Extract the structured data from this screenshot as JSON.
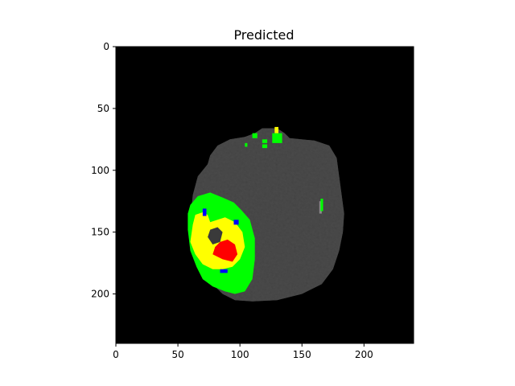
{
  "chart_data": {
    "type": "heatmap",
    "title": "Predicted",
    "xlabel": "",
    "ylabel": "",
    "xlim": [
      0,
      240
    ],
    "ylim": [
      240,
      0
    ],
    "xticks": [
      0,
      50,
      100,
      150,
      200
    ],
    "yticks": [
      0,
      50,
      100,
      150,
      200
    ],
    "grid": false,
    "legend": "none",
    "background_color": "#000000",
    "brain_color": "#4a4a4a",
    "classes": [
      {
        "color": "#00ff00"
      },
      {
        "color": "#ffff00"
      },
      {
        "color": "#ff0000"
      },
      {
        "color": "#0000ff"
      }
    ]
  }
}
